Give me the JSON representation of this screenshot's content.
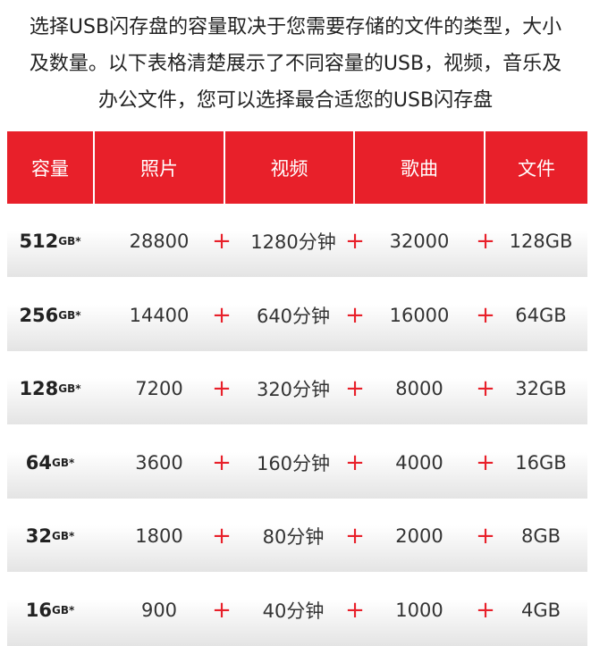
{
  "intro": [
    "选择USB闪存盘的容量取决于您需要存储的文件的类型，大小",
    "及数量。以下表格清楚展示了不同容量的USB，视频，音乐及",
    "办公文件，您可以选择最合适您的USB闪存盘"
  ],
  "headers": [
    "容量",
    "照片",
    "视频",
    "歌曲",
    "文件"
  ],
  "unit": "GB",
  "asterisk": "*",
  "plus": "+",
  "rows": [
    {
      "capacity": "512",
      "photos": "28800",
      "video": "1280分钟",
      "songs": "32000",
      "files": "128GB"
    },
    {
      "capacity": "256",
      "photos": "14400",
      "video": "640分钟",
      "songs": "16000",
      "files": "64GB"
    },
    {
      "capacity": "128",
      "photos": "7200",
      "video": "320分钟",
      "songs": "8000",
      "files": "32GB"
    },
    {
      "capacity": "64",
      "photos": "3600",
      "video": "160分钟",
      "songs": "4000",
      "files": "16GB"
    },
    {
      "capacity": "32",
      "photos": "1800",
      "video": "80分钟",
      "songs": "2000",
      "files": "8GB"
    },
    {
      "capacity": "16",
      "photos": "900",
      "video": "40分钟",
      "songs": "1000",
      "files": "4GB"
    }
  ],
  "colors": {
    "accent": "#e8202a"
  }
}
